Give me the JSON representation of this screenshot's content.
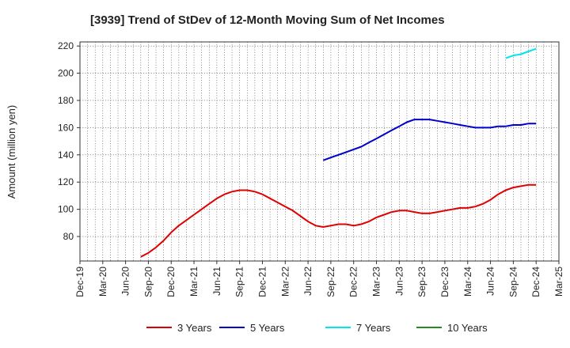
{
  "chart_data": {
    "type": "line",
    "title": "[3939]  Trend of StDev of 12-Month Moving Sum of Net Incomes",
    "xlabel": "",
    "ylabel": "Amount (million yen)",
    "ylim": [
      62,
      223
    ],
    "yticks": [
      80,
      100,
      120,
      140,
      160,
      180,
      200,
      220
    ],
    "x_tick_labels": [
      "Dec-19",
      "Mar-20",
      "Jun-20",
      "Sep-20",
      "Dec-20",
      "Mar-21",
      "Jun-21",
      "Sep-21",
      "Dec-21",
      "Mar-22",
      "Jun-22",
      "Sep-22",
      "Dec-22",
      "Mar-23",
      "Jun-23",
      "Sep-23",
      "Dec-23",
      "Mar-24",
      "Jun-24",
      "Sep-24",
      "Dec-24",
      "Mar-25"
    ],
    "grid": true,
    "legend_position": "bottom",
    "series": [
      {
        "name": "3 Years",
        "color": "#e00000",
        "x": [
          "Aug-20",
          "Sep-20",
          "Oct-20",
          "Nov-20",
          "Dec-20",
          "Jan-21",
          "Feb-21",
          "Mar-21",
          "Apr-21",
          "May-21",
          "Jun-21",
          "Jul-21",
          "Aug-21",
          "Sep-21",
          "Oct-21",
          "Nov-21",
          "Dec-21",
          "Jan-22",
          "Feb-22",
          "Mar-22",
          "Apr-22",
          "May-22",
          "Jun-22",
          "Jul-22",
          "Aug-22",
          "Sep-22",
          "Oct-22",
          "Nov-22",
          "Dec-22",
          "Jan-23",
          "Feb-23",
          "Mar-23",
          "Apr-23",
          "May-23",
          "Jun-23",
          "Jul-23",
          "Aug-23",
          "Sep-23",
          "Oct-23",
          "Nov-23",
          "Dec-23",
          "Jan-24",
          "Feb-24",
          "Mar-24",
          "Apr-24",
          "May-24",
          "Jun-24",
          "Jul-24",
          "Aug-24",
          "Sep-24",
          "Oct-24",
          "Nov-24",
          "Dec-24"
        ],
        "values": [
          65,
          68,
          72,
          77,
          83,
          88,
          92,
          96,
          100,
          104,
          108,
          111,
          113,
          114,
          114,
          113,
          111,
          108,
          105,
          102,
          99,
          95,
          91,
          88,
          87,
          88,
          89,
          89,
          88,
          89,
          91,
          94,
          96,
          98,
          99,
          99,
          98,
          97,
          97,
          98,
          99,
          100,
          101,
          101,
          102,
          104,
          107,
          111,
          114,
          116,
          117,
          118,
          118
        ]
      },
      {
        "name": "5 Years",
        "color": "#0000cc",
        "x": [
          "Aug-22",
          "Sep-22",
          "Oct-22",
          "Nov-22",
          "Dec-22",
          "Jan-23",
          "Feb-23",
          "Mar-23",
          "Apr-23",
          "May-23",
          "Jun-23",
          "Jul-23",
          "Aug-23",
          "Sep-23",
          "Oct-23",
          "Nov-23",
          "Dec-23",
          "Jan-24",
          "Feb-24",
          "Mar-24",
          "Apr-24",
          "May-24",
          "Jun-24",
          "Jul-24",
          "Aug-24",
          "Sep-24",
          "Oct-24",
          "Nov-24",
          "Dec-24"
        ],
        "values": [
          136,
          138,
          140,
          142,
          144,
          146,
          149,
          152,
          155,
          158,
          161,
          164,
          166,
          166,
          166,
          165,
          164,
          163,
          162,
          161,
          160,
          160,
          160,
          161,
          161,
          162,
          162,
          163,
          163
        ]
      },
      {
        "name": "7 Years",
        "color": "#00e5ee",
        "x": [
          "Aug-24",
          "Sep-24",
          "Oct-24",
          "Nov-24",
          "Dec-24"
        ],
        "values": [
          211,
          213,
          214,
          216,
          218
        ]
      },
      {
        "name": "10 Years",
        "color": "#228b22",
        "x": [],
        "values": []
      }
    ]
  }
}
